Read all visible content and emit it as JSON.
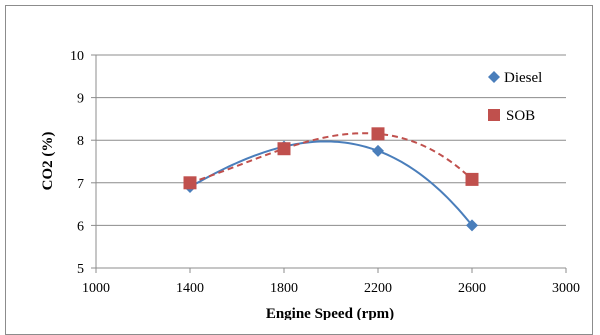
{
  "chart_data": {
    "type": "scatter",
    "xlabel": "Engine Speed (rpm)",
    "ylabel": "CO2 (%)",
    "xlim": [
      1000,
      3000
    ],
    "ylim": [
      5,
      10
    ],
    "xticks": [
      1000,
      1400,
      1800,
      2200,
      2600,
      3000
    ],
    "yticks": [
      5,
      6,
      7,
      8,
      9,
      10
    ],
    "grid": "horizontal",
    "legend_position": "top-right",
    "series": [
      {
        "name": "Diesel",
        "marker": "diamond",
        "color": "#4a7ebb",
        "trendline": "solid",
        "x": [
          1400,
          1800,
          2200,
          2600
        ],
        "y": [
          6.9,
          7.85,
          7.75,
          6.0
        ]
      },
      {
        "name": "SOB",
        "marker": "square",
        "color": "#c0504d",
        "trendline": "dashed",
        "x": [
          1400,
          1800,
          2200,
          2600
        ],
        "y": [
          7.0,
          7.8,
          8.15,
          7.08
        ]
      }
    ]
  }
}
